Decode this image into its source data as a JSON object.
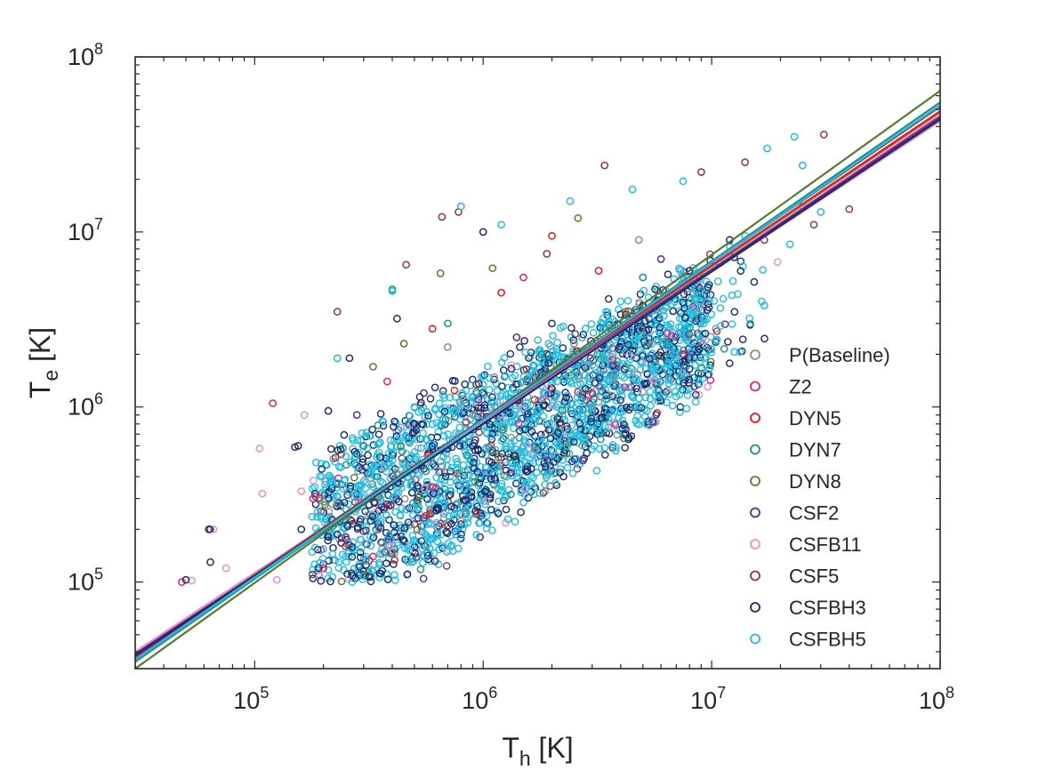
{
  "chart_data": {
    "type": "scatter",
    "title": "",
    "xlabel": {
      "base": "T",
      "sub": "h",
      "unit": " [K]"
    },
    "ylabel": {
      "base": "T",
      "sub": "e",
      "unit": " [K]"
    },
    "xscale": "log",
    "yscale": "log",
    "xlim": [
      30000,
      100000000
    ],
    "ylim": [
      32000,
      100000000
    ],
    "x_ticks": [
      {
        "value": 100000,
        "base": "10",
        "exp": "5"
      },
      {
        "value": 1000000,
        "base": "10",
        "exp": "6"
      },
      {
        "value": 10000000,
        "base": "10",
        "exp": "7"
      },
      {
        "value": 100000000,
        "base": "10",
        "exp": "8"
      }
    ],
    "y_ticks": [
      {
        "value": 100000,
        "base": "10",
        "exp": "5"
      },
      {
        "value": 1000000,
        "base": "10",
        "exp": "6"
      },
      {
        "value": 10000000,
        "base": "10",
        "exp": "7"
      },
      {
        "value": 100000000,
        "base": "10",
        "exp": "8"
      }
    ],
    "grid": false,
    "box": true,
    "legend_position": "right, lower half",
    "series": [
      {
        "name": "P(Baseline)",
        "color": "#8c8c8c",
        "fit": {
          "x": [
            30000,
            100000000
          ],
          "y": [
            38000,
            48000000
          ]
        },
        "points": [
          [
            230000,
            280000
          ],
          [
            420000,
            420000
          ],
          [
            900000,
            900000
          ],
          [
            2500000,
            2300000
          ],
          [
            4800000,
            9000000
          ],
          [
            700000,
            2200000
          ],
          [
            350000,
            200000
          ]
        ]
      },
      {
        "name": "Z2",
        "color": "#d6267a",
        "fit": {
          "x": [
            30000,
            100000000
          ],
          "y": [
            37000,
            46000000
          ]
        },
        "points": [
          [
            48000,
            100000
          ],
          [
            120000,
            1050000
          ],
          [
            180000,
            300000
          ],
          [
            250000,
            180000
          ],
          [
            380000,
            1400000
          ],
          [
            600000,
            350000
          ],
          [
            1500000,
            5500000
          ],
          [
            3000000,
            1200000
          ],
          [
            200000,
            120000
          ],
          [
            330000,
            140000
          ]
        ]
      },
      {
        "name": "DYN5",
        "color": "#e41a1c",
        "fit": {
          "x": [
            30000,
            100000000
          ],
          "y": [
            38500,
            49000000
          ]
        },
        "points": [
          [
            2000000,
            9500000
          ],
          [
            600000,
            2800000
          ],
          [
            1200000,
            4500000
          ],
          [
            3200000,
            6000000
          ]
        ]
      },
      {
        "name": "DYN7",
        "color": "#1a8f8c",
        "fit": {
          "x": [
            30000,
            100000000
          ],
          "y": [
            35000,
            55000000
          ]
        },
        "points": [
          [
            400000,
            4700000
          ],
          [
            700000,
            3000000
          ],
          [
            1800000,
            2000000
          ],
          [
            5000000,
            5500000
          ],
          [
            300000,
            600000
          ],
          [
            9000000,
            4500000
          ]
        ]
      },
      {
        "name": "DYN8",
        "color": "#5a7a2e",
        "fit": {
          "x": [
            30000,
            100000000
          ],
          "y": [
            32000,
            64000000
          ]
        },
        "points": [
          [
            450000,
            2300000
          ],
          [
            650000,
            5800000
          ],
          [
            1100000,
            6200000
          ],
          [
            2600000,
            12000000
          ],
          [
            330000,
            1700000
          ],
          [
            4200000,
            3500000
          ]
        ]
      },
      {
        "name": "CSF2",
        "color": "#5b2a86",
        "fit": {
          "x": [
            30000,
            100000000
          ],
          "y": [
            39000,
            45000000
          ]
        },
        "points": [
          [
            64000,
            200000
          ],
          [
            280000,
            900000
          ],
          [
            550000,
            1200000
          ],
          [
            1400000,
            2500000
          ],
          [
            6000000,
            7000000
          ]
        ]
      },
      {
        "name": "CSFB11",
        "color": "#e58fd0",
        "fit": {
          "x": [
            30000,
            100000000
          ],
          "y": [
            40000,
            43000000
          ]
        },
        "points": [
          [
            53000,
            102000
          ],
          [
            66000,
            200000
          ],
          [
            75000,
            120000
          ],
          [
            105000,
            580000
          ],
          [
            108000,
            320000
          ],
          [
            165000,
            900000
          ],
          [
            125000,
            103000
          ],
          [
            160000,
            330000
          ],
          [
            390000,
            160000
          ]
        ]
      },
      {
        "name": "CSF5",
        "color": "#8b3a3a",
        "fit": {
          "x": [
            30000,
            100000000
          ],
          "y": [
            37500,
            52000000
          ]
        },
        "points": [
          [
            230000,
            3500000
          ],
          [
            460000,
            6500000
          ],
          [
            660000,
            12200000
          ],
          [
            1900000,
            7500000
          ],
          [
            3400000,
            24000000
          ],
          [
            9000000,
            22000000
          ],
          [
            14000000,
            25000000
          ],
          [
            31000000,
            36000000
          ],
          [
            40000000,
            13500000
          ],
          [
            28000000,
            11000000
          ],
          [
            17000000,
            9000000
          ],
          [
            780000,
            13000000
          ]
        ]
      },
      {
        "name": "CSFBH3",
        "color": "#1b2a6b",
        "fit": {
          "x": [
            30000,
            100000000
          ],
          "y": [
            38000,
            44000000
          ]
        },
        "points": [
          [
            50000,
            103000
          ],
          [
            63000,
            200000
          ],
          [
            64000,
            130000
          ],
          [
            150000,
            590000
          ],
          [
            155000,
            600000
          ],
          [
            210000,
            950000
          ],
          [
            160000,
            200000
          ],
          [
            260000,
            1900000
          ],
          [
            500000,
            800000
          ],
          [
            900000,
            600000
          ],
          [
            2000000,
            3000000
          ],
          [
            5000000,
            3800000
          ],
          [
            8000000,
            6000000
          ],
          [
            12000000,
            9000000
          ],
          [
            1000000,
            10000000
          ],
          [
            420000,
            3200000
          ]
        ]
      },
      {
        "name": "CSFBH5",
        "color": "#1fbde0",
        "fit": {
          "x": [
            30000,
            100000000
          ],
          "y": [
            36000,
            53000000
          ]
        },
        "points": [
          [
            230000,
            1900000
          ],
          [
            400000,
            4600000
          ],
          [
            800000,
            14000000
          ],
          [
            1200000,
            11000000
          ],
          [
            2400000,
            15000000
          ],
          [
            4500000,
            17500000
          ],
          [
            7500000,
            19500000
          ],
          [
            17500000,
            30000000
          ],
          [
            23000000,
            35000000
          ],
          [
            25000000,
            24000000
          ],
          [
            25000000,
            14000000
          ],
          [
            30000000,
            13000000
          ],
          [
            22000000,
            8500000
          ],
          [
            17000000,
            3800000
          ],
          [
            10500000,
            2400000
          ],
          [
            14000000,
            9500000
          ],
          [
            500000,
            1000000
          ],
          [
            1000000,
            1500000
          ],
          [
            300000,
            300000
          ],
          [
            250000,
            260000
          ],
          [
            3000000,
            1000000
          ],
          [
            6000000,
            2500000
          ],
          [
            2000000,
            800000
          ],
          [
            1500000,
            600000
          ]
        ]
      }
    ]
  }
}
